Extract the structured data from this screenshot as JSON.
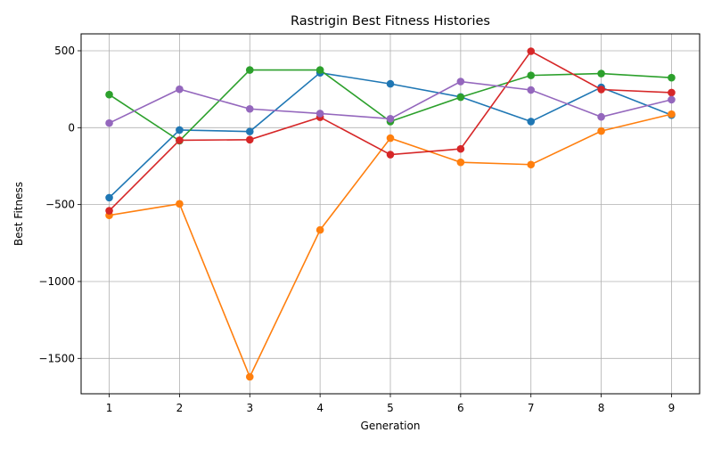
{
  "chart_data": {
    "type": "line",
    "title": "Rastrigin Best Fitness Histories",
    "xlabel": "Generation",
    "ylabel": "Best Fitness",
    "x": [
      1,
      2,
      3,
      4,
      5,
      6,
      7,
      8,
      9
    ],
    "xlim": [
      0.6,
      9.4
    ],
    "ylim": [
      -1730,
      610
    ],
    "xticks": [
      1,
      2,
      3,
      4,
      5,
      6,
      7,
      8,
      9
    ],
    "yticks": [
      -1500,
      -1000,
      -500,
      0,
      500
    ],
    "ytick_labels": [
      "−1500",
      "−1000",
      "−500",
      "0",
      "500"
    ],
    "grid": true,
    "markers": "circle",
    "series": [
      {
        "color": "#1f77b4",
        "values": [
          -455,
          -15,
          -25,
          357,
          285,
          200,
          40,
          262,
          82
        ]
      },
      {
        "color": "#ff7f0e",
        "values": [
          -570,
          -495,
          -1620,
          -665,
          -68,
          -225,
          -240,
          -22,
          88
        ]
      },
      {
        "color": "#2ca02c",
        "values": [
          215,
          -85,
          375,
          375,
          40,
          198,
          340,
          352,
          325
        ]
      },
      {
        "color": "#d62728",
        "values": [
          -540,
          -82,
          -78,
          68,
          -175,
          -138,
          497,
          248,
          228
        ]
      },
      {
        "color": "#9467bd",
        "values": [
          30,
          250,
          122,
          92,
          58,
          300,
          245,
          70,
          182
        ]
      }
    ]
  }
}
